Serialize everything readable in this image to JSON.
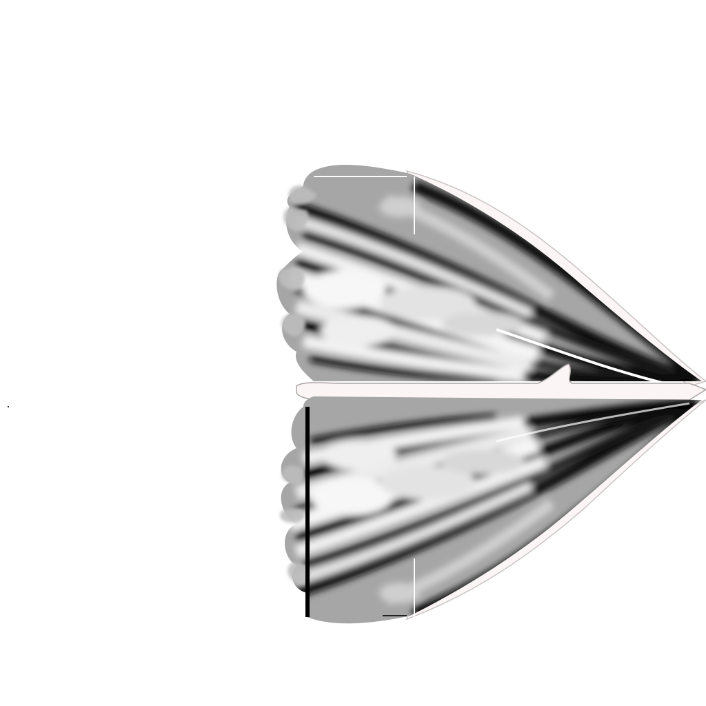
{
  "canvas": {
    "background": "#ffffff"
  },
  "artwork": {
    "subject": "mirrored-feather-wings",
    "palette": {
      "outline": "#fbf6f5",
      "shadow": "#000000",
      "dark": "#2a2a2a",
      "mid": "#8c8c8c",
      "light": "#d9d9d9",
      "highlight": "#f4f2f2",
      "backing": "#a6a6a6"
    }
  }
}
